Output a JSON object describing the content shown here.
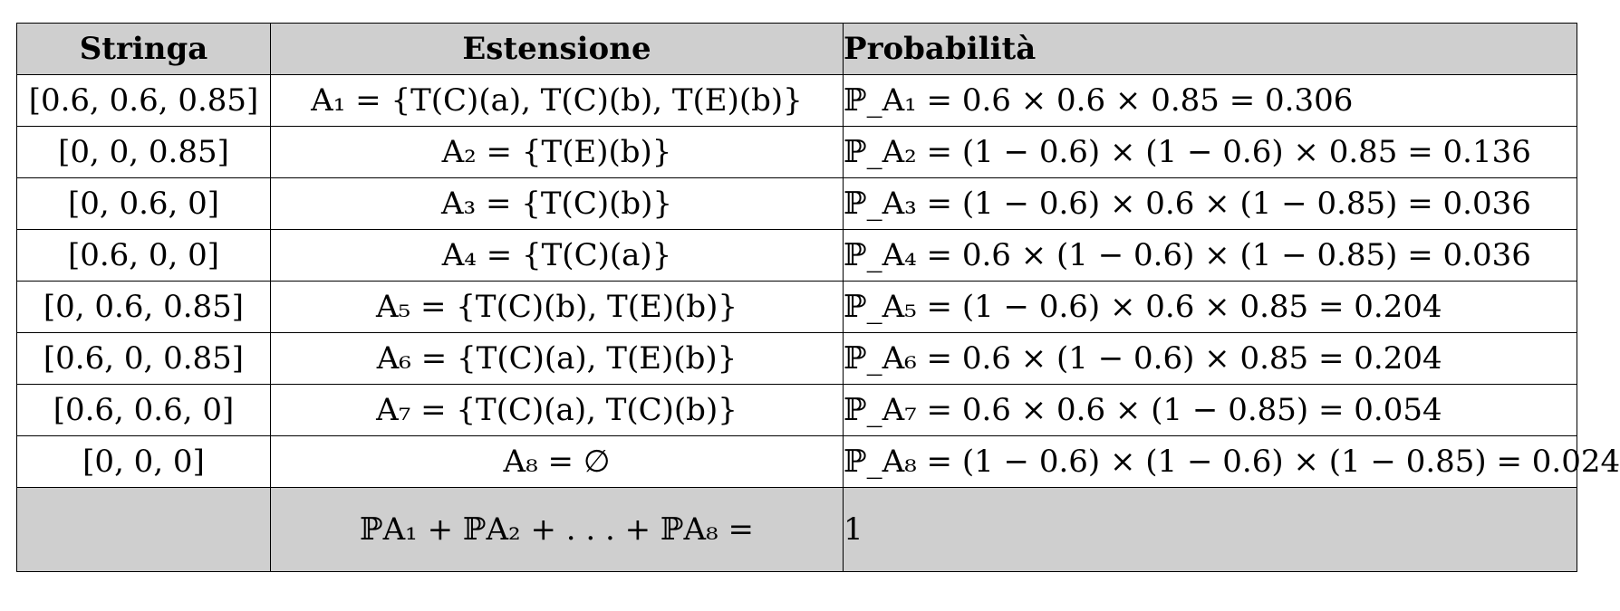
{
  "headers": [
    "Stringa",
    "Estensione",
    "Probabilità"
  ],
  "rows": [
    {
      "stringa": "[0.6, 0.6, 0.85]",
      "estensione": "A₁ = {T(C)(a), T(C)(b), T(E)(b)}",
      "probabilita": "ℙ_A₁ = 0.6 × 0.6 × 0.85 = 0.306"
    },
    {
      "stringa": "[0, 0, 0.85]",
      "estensione": "A₂ = {T(E)(b)}",
      "probabilita": "ℙ_A₂ = (1 − 0.6) × (1 − 0.6) × 0.85 = 0.136"
    },
    {
      "stringa": "[0, 0.6, 0]",
      "estensione": "A₃ = {T(C)(b)}",
      "probabilita": "ℙ_A₃ = (1 − 0.6) × 0.6 × (1 − 0.85) = 0.036"
    },
    {
      "stringa": "[0.6, 0, 0]",
      "estensione": "A₄ = {T(C)(a)}",
      "probabilita": "ℙ_A₄ = 0.6 × (1 − 0.6) × (1 − 0.85) = 0.036"
    },
    {
      "stringa": "[0, 0.6, 0.85]",
      "estensione": "A₅ = {T(C)(b), T(E)(b)}",
      "probabilita": "ℙ_A₅ = (1 − 0.6) × 0.6 × 0.85 = 0.204"
    },
    {
      "stringa": "[0.6, 0, 0.85]",
      "estensione": "A₆ = {T(C)(a), T(E)(b)}",
      "probabilita": "ℙ_A₆ = 0.6 × (1 − 0.6) × 0.85 = 0.204"
    },
    {
      "stringa": "[0.6, 0.6, 0]",
      "estensione": "A₇ = {T(C)(a), T(C)(b)}",
      "probabilita": "ℙ_A₇ = 0.6 × 0.6 × (1 − 0.85) = 0.054"
    },
    {
      "stringa": "[0, 0, 0]",
      "estensione": "A₈ = ∅",
      "probabilita": "ℙ_A₈ = (1 − 0.6) × (1 − 0.6) × (1 − 0.85) = 0.024"
    }
  ],
  "total": {
    "sum_formula": "ℙA₁ + ℙA₂ + . . . + ℙA₈ =",
    "value": "1"
  },
  "colors": {
    "header_bg": "#cfcfcf",
    "border": "#000000"
  }
}
